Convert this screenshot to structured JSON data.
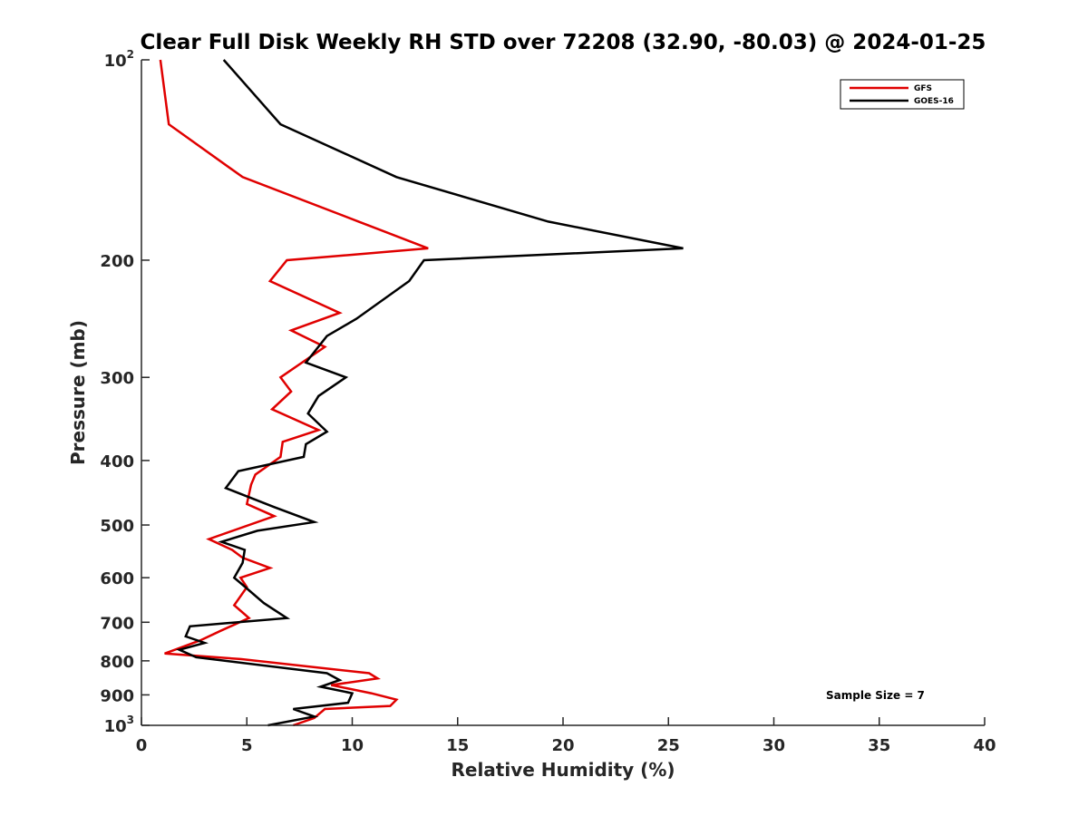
{
  "chart_data": {
    "type": "line",
    "title": "Clear Full Disk Weekly RH STD over 72208 (32.90, -80.03) @ 2024-01-25",
    "xlabel": "Relative Humidity (%)",
    "ylabel": "Pressure (mb)",
    "xlim": [
      0,
      40
    ],
    "ylim": [
      100,
      1000
    ],
    "y_scale": "log",
    "y_reversed": true,
    "grid": false,
    "legend_position": "top-right",
    "x_ticks": [
      {
        "value": 0,
        "label": "0"
      },
      {
        "value": 5,
        "label": "5"
      },
      {
        "value": 10,
        "label": "10"
      },
      {
        "value": 15,
        "label": "15"
      },
      {
        "value": 20,
        "label": "20"
      },
      {
        "value": 25,
        "label": "25"
      },
      {
        "value": 30,
        "label": "30"
      },
      {
        "value": 35,
        "label": "35"
      },
      {
        "value": 40,
        "label": "40"
      }
    ],
    "y_ticks": [
      {
        "value": 100,
        "base": "10",
        "exp": "2"
      },
      {
        "value": 200,
        "base": "200",
        "exp": ""
      },
      {
        "value": 300,
        "base": "300",
        "exp": ""
      },
      {
        "value": 400,
        "base": "400",
        "exp": ""
      },
      {
        "value": 500,
        "base": "500",
        "exp": ""
      },
      {
        "value": 600,
        "base": "600",
        "exp": ""
      },
      {
        "value": 700,
        "base": "700",
        "exp": ""
      },
      {
        "value": 800,
        "base": "800",
        "exp": ""
      },
      {
        "value": 900,
        "base": "900",
        "exp": ""
      },
      {
        "value": 1000,
        "base": "10",
        "exp": "3"
      }
    ],
    "series": [
      {
        "name": "GFS",
        "color": "#e00000",
        "points": [
          [
            0.9,
            100
          ],
          [
            1.3,
            125
          ],
          [
            4.8,
            150
          ],
          [
            10.3,
            175
          ],
          [
            13.6,
            192
          ],
          [
            6.9,
            200
          ],
          [
            6.1,
            215
          ],
          [
            9.4,
            240
          ],
          [
            7.1,
            255
          ],
          [
            8.7,
            270
          ],
          [
            6.6,
            300
          ],
          [
            7.1,
            315
          ],
          [
            6.2,
            335
          ],
          [
            8.4,
            360
          ],
          [
            6.7,
            375
          ],
          [
            6.6,
            395
          ],
          [
            5.4,
            420
          ],
          [
            5.2,
            435
          ],
          [
            5.0,
            465
          ],
          [
            6.3,
            485
          ],
          [
            3.2,
            525
          ],
          [
            4.3,
            545
          ],
          [
            4.8,
            560
          ],
          [
            6.1,
            580
          ],
          [
            4.7,
            600
          ],
          [
            5.0,
            620
          ],
          [
            4.4,
            660
          ],
          [
            5.1,
            690
          ],
          [
            3.8,
            720
          ],
          [
            2.8,
            745
          ],
          [
            1.1,
            780
          ],
          [
            4.7,
            795
          ],
          [
            10.8,
            835
          ],
          [
            11.2,
            850
          ],
          [
            9.0,
            870
          ],
          [
            10.9,
            895
          ],
          [
            12.1,
            915
          ],
          [
            11.8,
            935
          ],
          [
            8.7,
            945
          ],
          [
            8.2,
            975
          ],
          [
            7.2,
            1000
          ]
        ]
      },
      {
        "name": "GOES-16",
        "color": "#000000",
        "points": [
          [
            3.9,
            100
          ],
          [
            6.6,
            125
          ],
          [
            12.1,
            150
          ],
          [
            19.3,
            175
          ],
          [
            25.7,
            192
          ],
          [
            13.4,
            200
          ],
          [
            12.7,
            215
          ],
          [
            10.2,
            245
          ],
          [
            8.8,
            260
          ],
          [
            7.8,
            285
          ],
          [
            9.7,
            300
          ],
          [
            8.4,
            320
          ],
          [
            7.9,
            340
          ],
          [
            8.8,
            362
          ],
          [
            7.8,
            378
          ],
          [
            7.7,
            395
          ],
          [
            4.6,
            415
          ],
          [
            4.0,
            440
          ],
          [
            6.3,
            470
          ],
          [
            8.2,
            495
          ],
          [
            5.5,
            510
          ],
          [
            3.8,
            530
          ],
          [
            4.9,
            545
          ],
          [
            4.8,
            570
          ],
          [
            4.4,
            600
          ],
          [
            4.8,
            615
          ],
          [
            5.8,
            655
          ],
          [
            6.9,
            690
          ],
          [
            2.3,
            710
          ],
          [
            2.1,
            735
          ],
          [
            3.0,
            752
          ],
          [
            1.8,
            770
          ],
          [
            2.6,
            790
          ],
          [
            8.8,
            835
          ],
          [
            9.4,
            855
          ],
          [
            8.5,
            875
          ],
          [
            10.0,
            895
          ],
          [
            9.8,
            925
          ],
          [
            7.2,
            945
          ],
          [
            8.2,
            970
          ],
          [
            6.0,
            1000
          ]
        ]
      }
    ],
    "annotation": "Sample Size = 7"
  }
}
